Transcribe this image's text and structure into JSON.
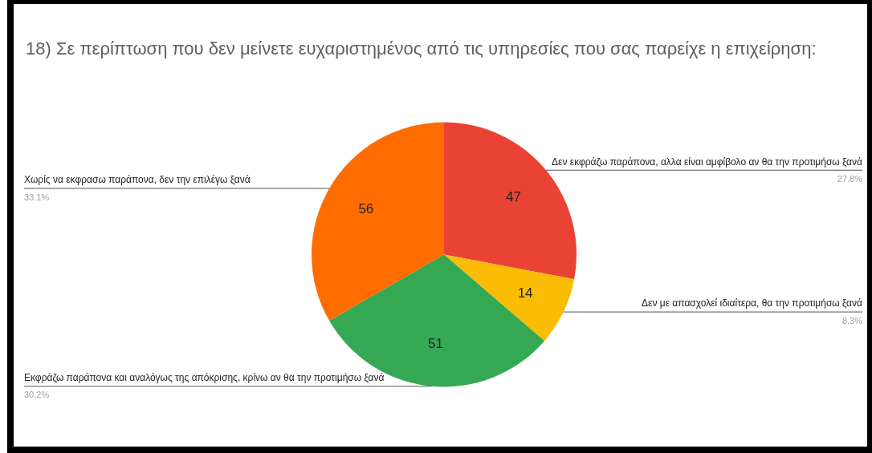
{
  "chart_data": {
    "type": "pie",
    "title": "18) Σε περίπτωση που δεν μείνετε ευχαριστημένος από τις υπηρεσίες που σας παρείχε η επιχείρηση:",
    "categories": [
      "Δεν εκφράζω παράπονα, αλλα είναι αμφίβολο αν θα την προτιμήσω ξανά",
      "Δεν με απασχολεί ιδιαίτερα, θα την προτιμήσω ξανά",
      "Εκφράζω παράπονα και αναλόγως της απόκρισης, κρίνω αν θα την προτιμήσω ξανά",
      "Χωρίς να εκφρασω παράπονα, δεν την επιλέγω ξανά"
    ],
    "values": [
      47,
      14,
      51,
      56
    ],
    "colors": [
      "#ea4335",
      "#fbbc04",
      "#34a853",
      "#ff6d01"
    ],
    "data_labels": true,
    "annotations": [
      "27.8%",
      "8.3%",
      "30.2%",
      "33.1%"
    ],
    "legend": false
  }
}
